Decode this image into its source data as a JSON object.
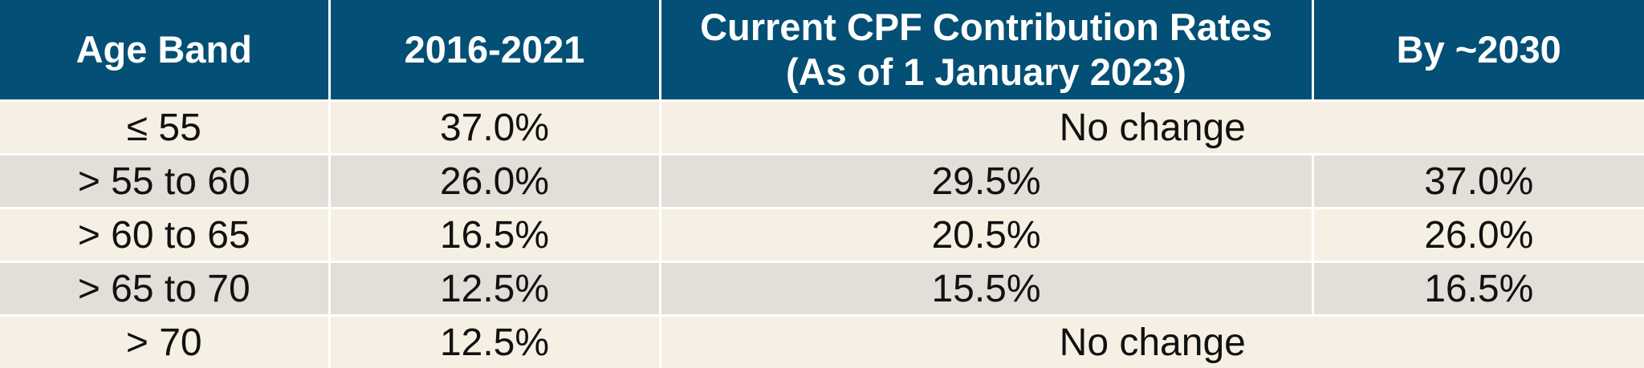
{
  "table": {
    "headers": {
      "age_band": "Age Band",
      "period_2016_2021": "2016-2021",
      "current_line1": "Current CPF Contribution Rates",
      "current_line2": "(As of 1 January 2023)",
      "by_2030": "By ~2030"
    },
    "rows": [
      {
        "age": "≤ 55",
        "rate_2016_2021": "37.0%",
        "merged": "No change"
      },
      {
        "age": "> 55 to 60",
        "rate_2016_2021": "26.0%",
        "current": "29.5%",
        "by_2030": "37.0%"
      },
      {
        "age": "> 60 to 65",
        "rate_2016_2021": "16.5%",
        "current": "20.5%",
        "by_2030": "26.0%"
      },
      {
        "age": "> 65 to 70",
        "rate_2016_2021": "12.5%",
        "current": "15.5%",
        "by_2030": "16.5%"
      },
      {
        "age": "> 70",
        "rate_2016_2021": "12.5%",
        "merged": "No change"
      }
    ],
    "colors": {
      "header_bg": "#034f75",
      "header_text": "#ffffff",
      "row_light": "#f6f0e4",
      "row_dark": "#e2dfd8"
    }
  }
}
